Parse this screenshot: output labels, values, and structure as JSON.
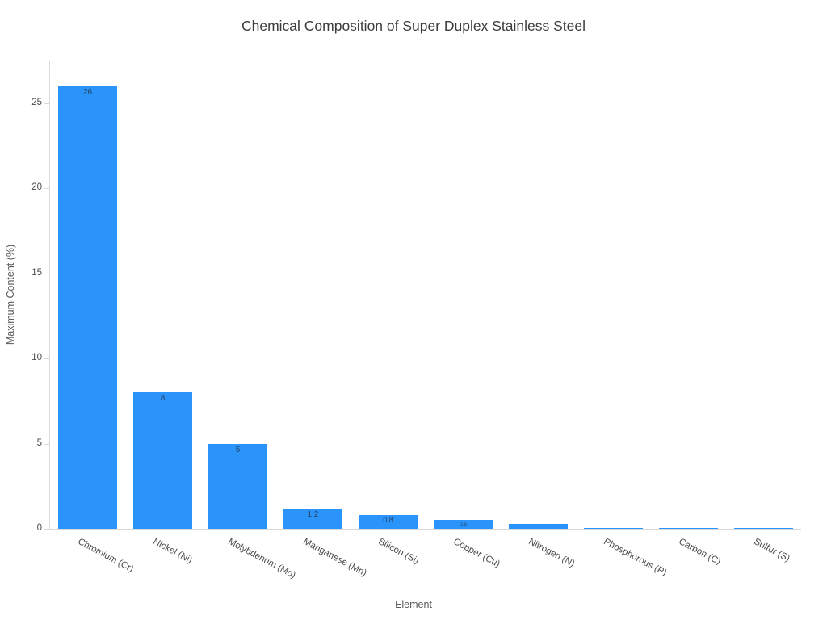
{
  "chart_data": {
    "type": "bar",
    "title": "Chemical Composition of Super Duplex Stainless Steel",
    "xlabel": "Element",
    "ylabel": "Maximum Content (%)",
    "categories": [
      "Chromium (Cr)",
      "Nickel (Ni)",
      "Molybdenum (Mo)",
      "Manganese (Mn)",
      "Silicon (Si)",
      "Copper (Cu)",
      "Nitrogen (N)",
      "Phosphorous (P)",
      "Carbon (C)",
      "Sulfur (S)"
    ],
    "values": [
      26,
      8,
      5,
      1.2,
      0.8,
      0.5,
      0.3,
      0.035,
      0.03,
      0.02
    ],
    "bar_labels": [
      "26",
      "8",
      "5",
      "1.2",
      "0.8",
      "0.5",
      "",
      "",
      "",
      ""
    ],
    "ylim": [
      0,
      27.5
    ],
    "yticks": [
      0,
      5,
      10,
      15,
      20,
      25
    ],
    "grid": false,
    "legend": "none",
    "bar_color": "#2b94fa",
    "bar_label_color": "#2a3f5f",
    "background": "#ffffff"
  }
}
